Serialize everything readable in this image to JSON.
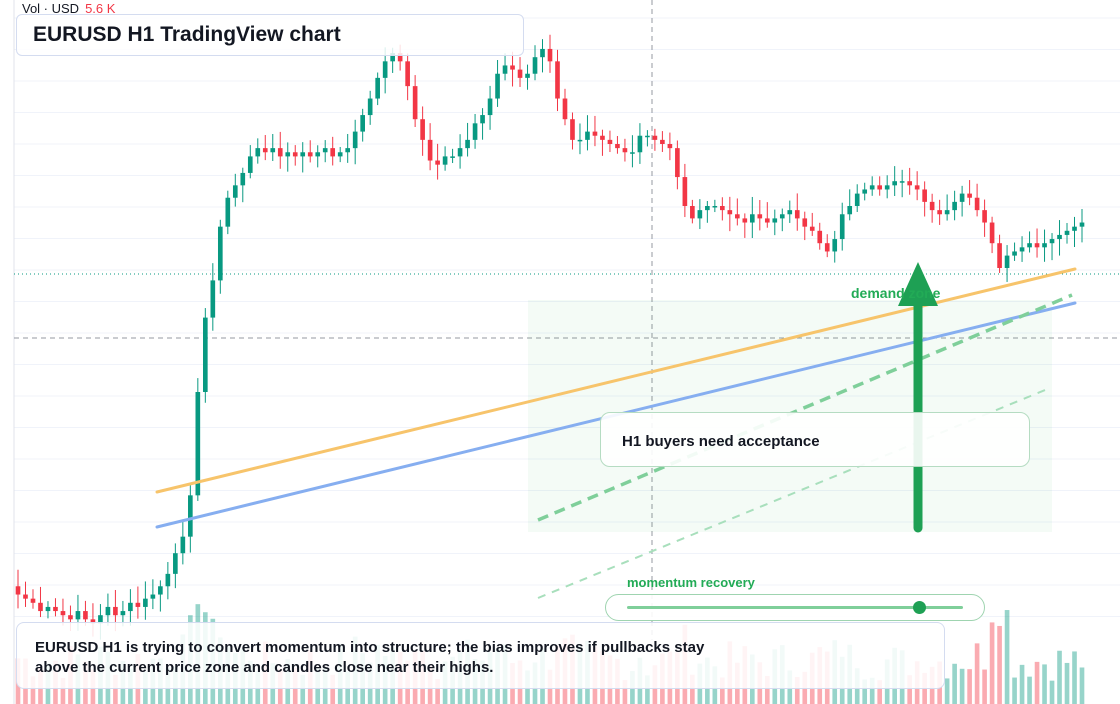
{
  "volume_legend": {
    "label": "Vol · USD",
    "value": "5.6 K"
  },
  "title": "EURUSD H1 TradingView chart",
  "annotations": {
    "demand_zone": "demand zone",
    "acceptance_card": "H1 buyers need acceptance",
    "momentum_label": "momentum recovery",
    "momentum_level": 0.87,
    "summary_line1": "EURUSD H1 is trying to convert momentum into structure; the bias improves if pullbacks stay",
    "summary_line2": "above the current price zone and candles close near their highs."
  },
  "colors": {
    "bull": "#089981",
    "bear": "#f23645",
    "zone": "#22ab56",
    "orange_trend": "#f7c46b",
    "blue_trend": "#86aef0",
    "arrow": "#1ea054"
  },
  "chart_data": {
    "type": "candlestick",
    "axes_labels_shown": false,
    "grid": true,
    "closes": [
      1.0856,
      1.0855,
      1.0854,
      1.0852,
      1.0853,
      1.0852,
      1.0851,
      1.085,
      1.0852,
      1.085,
      1.0849,
      1.0851,
      1.0853,
      1.0851,
      1.0852,
      1.0854,
      1.0853,
      1.0855,
      1.0856,
      1.0858,
      1.0861,
      1.0866,
      1.087,
      1.088,
      1.0905,
      1.0923,
      1.0932,
      1.0945,
      1.0952,
      1.0955,
      1.0958,
      1.0962,
      1.0964,
      1.0963,
      1.0964,
      1.0962,
      1.0963,
      1.0962,
      1.0963,
      1.0962,
      1.0963,
      1.0964,
      1.0962,
      1.0963,
      1.0964,
      1.0968,
      1.0972,
      1.0976,
      1.0981,
      1.0985,
      1.0987,
      1.0985,
      1.0979,
      1.0971,
      1.0966,
      1.0961,
      1.096,
      1.0962,
      1.0962,
      1.0964,
      1.0966,
      1.097,
      1.0972,
      1.0976,
      1.0982,
      1.0984,
      1.0983,
      1.0981,
      1.0982,
      1.0986,
      1.0988,
      1.0985,
      1.0976,
      1.0971,
      1.0966,
      1.0966,
      1.0968,
      1.0967,
      1.0966,
      1.0965,
      1.0964,
      1.0963,
      1.0963,
      1.0967,
      1.0967,
      1.0966,
      1.0965,
      1.0964,
      1.0957,
      1.095,
      1.0947,
      1.0949,
      1.095,
      1.095,
      1.0949,
      1.0948,
      1.0947,
      1.0946,
      1.0948,
      1.0947,
      1.0946,
      1.0947,
      1.0948,
      1.0949,
      1.0947,
      1.0945,
      1.0944,
      1.0941,
      1.0939,
      1.0942,
      1.0948,
      1.095,
      1.0953,
      1.0954,
      1.0955,
      1.0954,
      1.0955,
      1.0956,
      1.0956,
      1.0955,
      1.0954,
      1.0951,
      1.0949,
      1.0948,
      1.0949,
      1.0951,
      1.0953,
      1.0952,
      1.0949,
      1.0946,
      1.0941,
      1.0935,
      1.0938,
      1.0939,
      1.094,
      1.0941,
      1.094,
      1.0941,
      1.0942,
      1.0943,
      1.0944,
      1.0945,
      1.0946
    ]
  }
}
